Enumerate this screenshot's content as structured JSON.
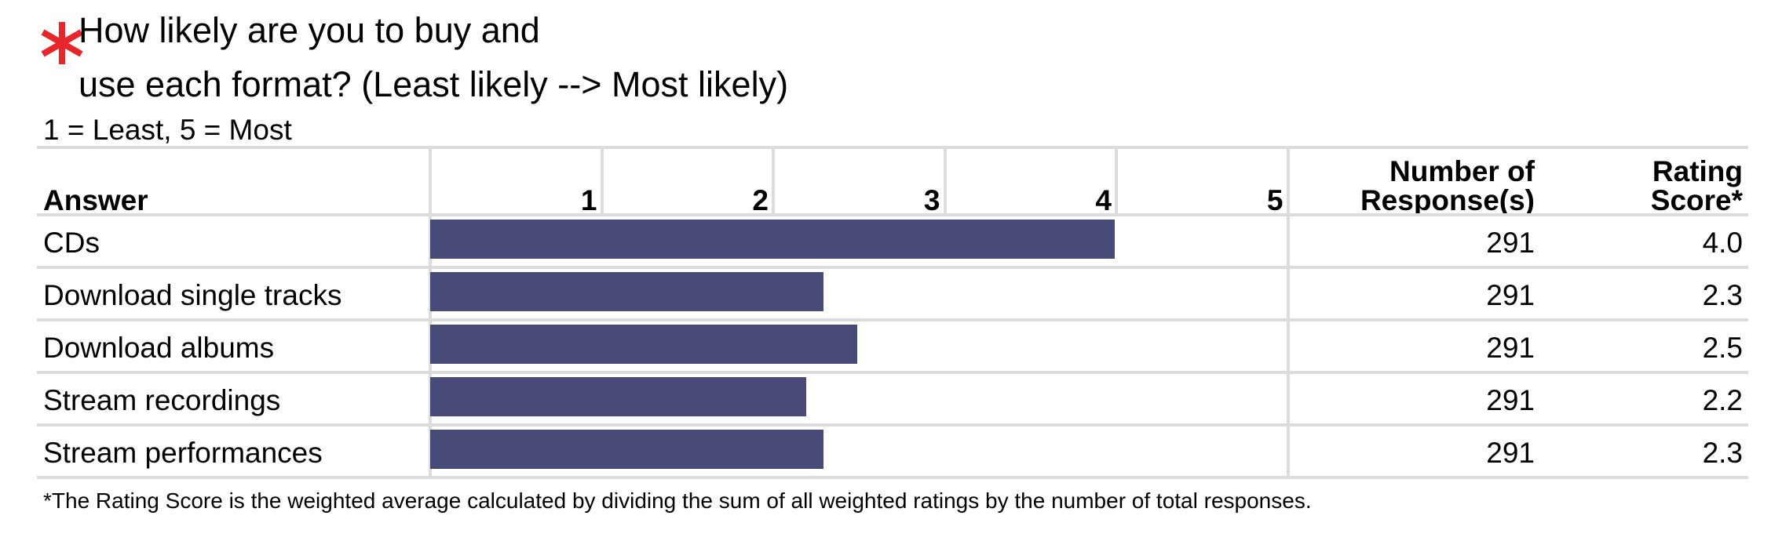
{
  "question": {
    "line1": "How likely are you to buy and",
    "line2": "use each format? (Least likely --> Most likely)",
    "scale_note": "1 = Least, 5 = Most",
    "required_color": "#e8262a"
  },
  "headers": {
    "answer": "Answer",
    "responses_line1": "Number of",
    "responses_line2": "Response(s)",
    "score_line1": "Rating",
    "score_line2": "Score*"
  },
  "chart_data": {
    "type": "bar",
    "orientation": "horizontal",
    "categories": [
      "CDs",
      "Download single tracks",
      "Download albums",
      "Stream recordings",
      "Stream performances"
    ],
    "values": [
      4.0,
      2.3,
      2.5,
      2.2,
      2.3
    ],
    "value_labels": [
      "4.0",
      "2.3",
      "2.5",
      "2.2",
      "2.3"
    ],
    "responses": [
      "291",
      "291",
      "291",
      "291",
      "291"
    ],
    "scale_ticks": [
      "1",
      "2",
      "3",
      "4",
      "5"
    ],
    "xlim": [
      0,
      5
    ],
    "bar_color": "#484a78",
    "grid": true
  },
  "footnote": "*The Rating Score is the weighted average calculated by dividing the sum of all weighted ratings by the number of total responses."
}
